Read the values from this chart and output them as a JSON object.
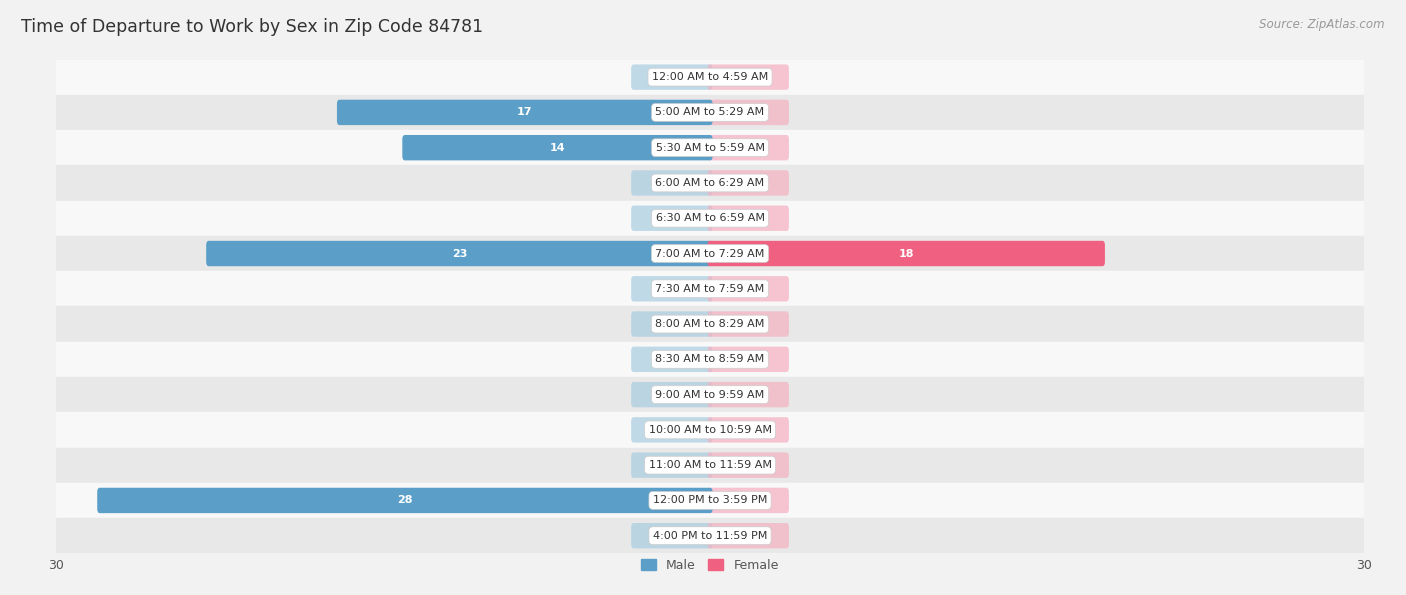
{
  "title": "Time of Departure to Work by Sex in Zip Code 84781",
  "source": "Source: ZipAtlas.com",
  "categories": [
    "12:00 AM to 4:59 AM",
    "5:00 AM to 5:29 AM",
    "5:30 AM to 5:59 AM",
    "6:00 AM to 6:29 AM",
    "6:30 AM to 6:59 AM",
    "7:00 AM to 7:29 AM",
    "7:30 AM to 7:59 AM",
    "8:00 AM to 8:29 AM",
    "8:30 AM to 8:59 AM",
    "9:00 AM to 9:59 AM",
    "10:00 AM to 10:59 AM",
    "11:00 AM to 11:59 AM",
    "12:00 PM to 3:59 PM",
    "4:00 PM to 11:59 PM"
  ],
  "male_values": [
    0,
    17,
    14,
    0,
    0,
    23,
    0,
    0,
    0,
    0,
    0,
    0,
    28,
    0
  ],
  "female_values": [
    0,
    0,
    0,
    0,
    0,
    18,
    0,
    0,
    0,
    0,
    0,
    0,
    0,
    0
  ],
  "male_color": "#a8cce0",
  "female_color": "#f4afc0",
  "male_color_solid": "#5b9fc8",
  "female_color_solid": "#f06080",
  "axis_max": 30,
  "bg_color": "#f2f2f2",
  "row_bg_light": "#f8f8f8",
  "row_bg_dark": "#e8e8e8",
  "title_fontsize": 12.5,
  "source_fontsize": 8.5,
  "label_fontsize": 8,
  "bar_label_fontsize": 8,
  "legend_fontsize": 9
}
